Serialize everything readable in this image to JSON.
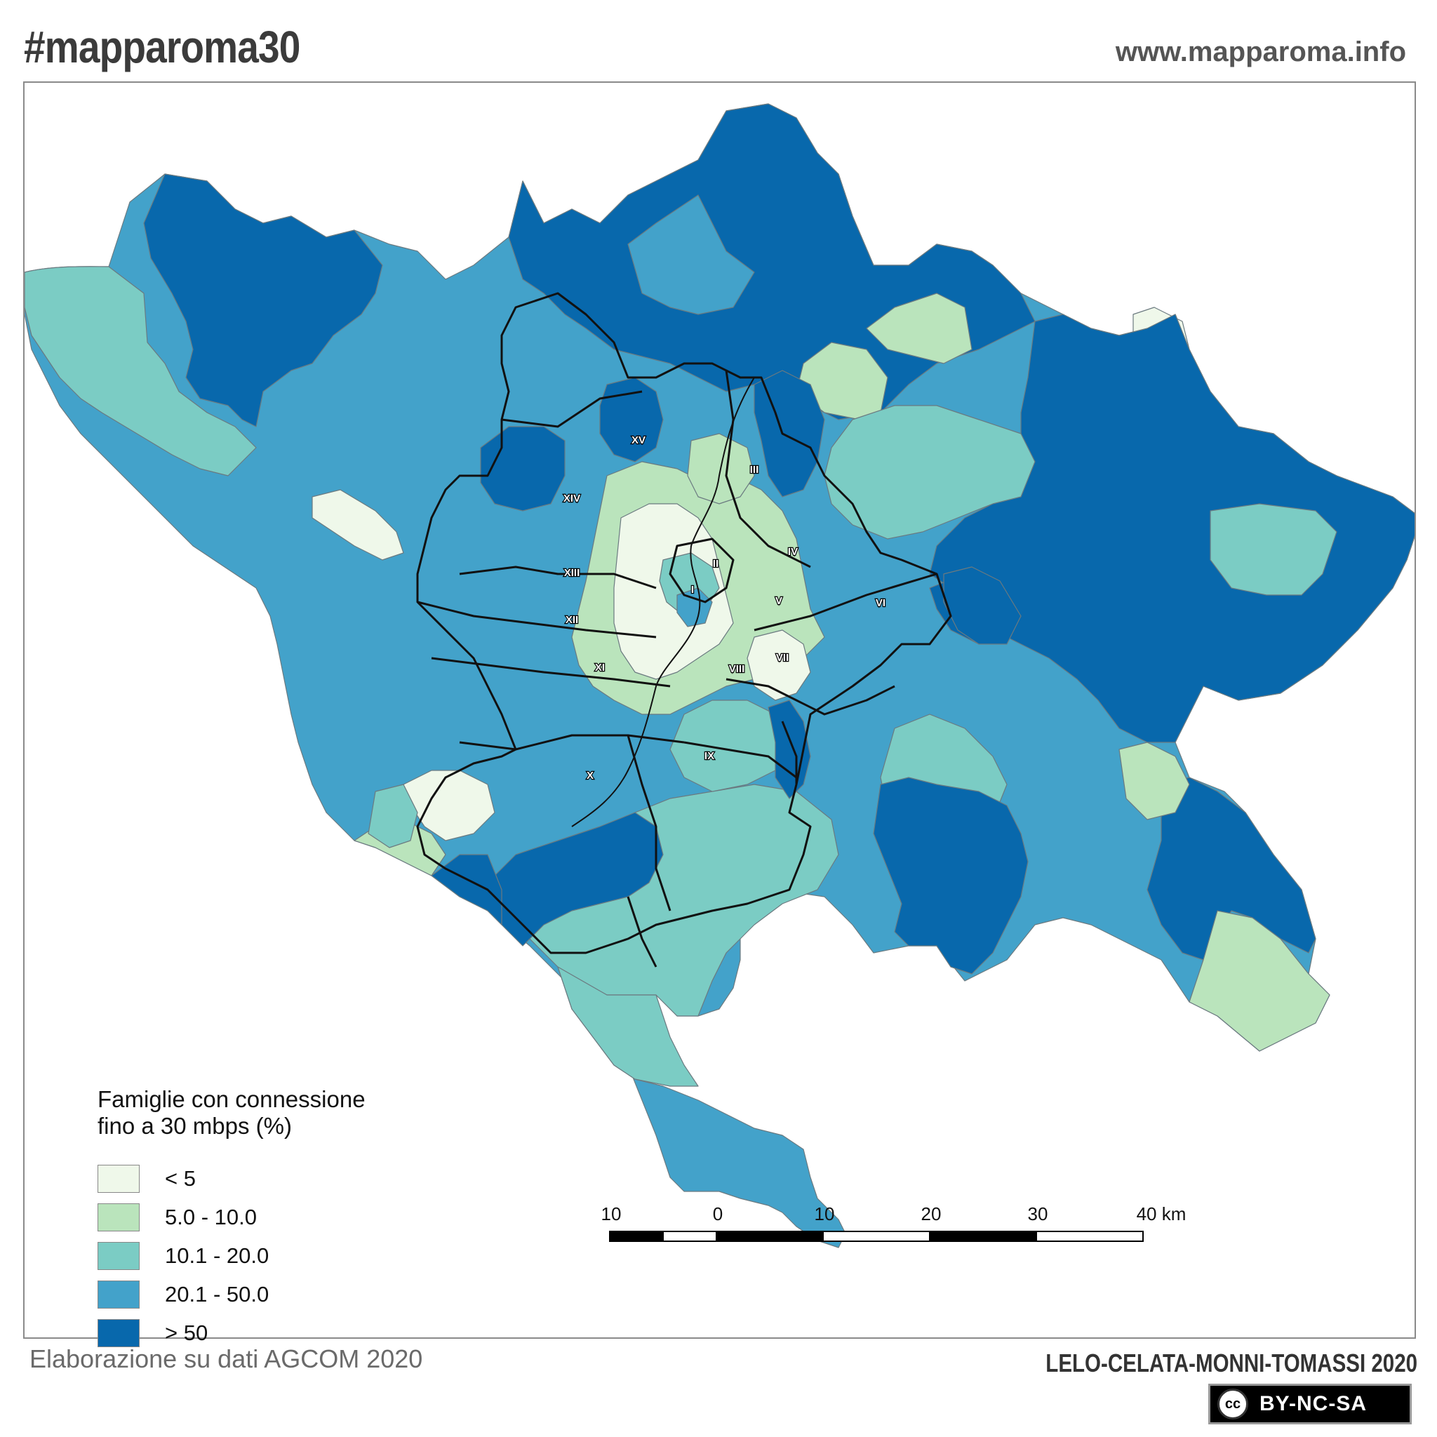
{
  "header": {
    "hashtag": "#mapparoma30",
    "website": "www.mapparoma.info"
  },
  "legend": {
    "title_line1": "Famiglie con connessione",
    "title_line2": "fino a 30 mbps (%)",
    "classes": [
      {
        "label": "< 5",
        "color": "#eff8ea"
      },
      {
        "label": "5.0 - 10.0",
        "color": "#bae4bc"
      },
      {
        "label": "10.1 - 20.0",
        "color": "#7bccc4"
      },
      {
        "label": "20.1 - 50.0",
        "color": "#43a2ca"
      },
      {
        "label": "> 50",
        "color": "#0868ac"
      }
    ]
  },
  "municipi": [
    "I",
    "II",
    "III",
    "IV",
    "V",
    "VI",
    "VII",
    "VIII",
    "IX",
    "X",
    "XI",
    "XII",
    "XIII",
    "XIV",
    "XV"
  ],
  "scale_bar": {
    "labels": [
      "10",
      "0",
      "10",
      "20",
      "30",
      "40 km"
    ]
  },
  "footer": {
    "source": "Elaborazione su dati AGCOM 2020",
    "authors": "LELO-CELATA-MONNI-TOMASSI 2020",
    "license_symbol": "cc",
    "license": "BY-NC-SA"
  }
}
